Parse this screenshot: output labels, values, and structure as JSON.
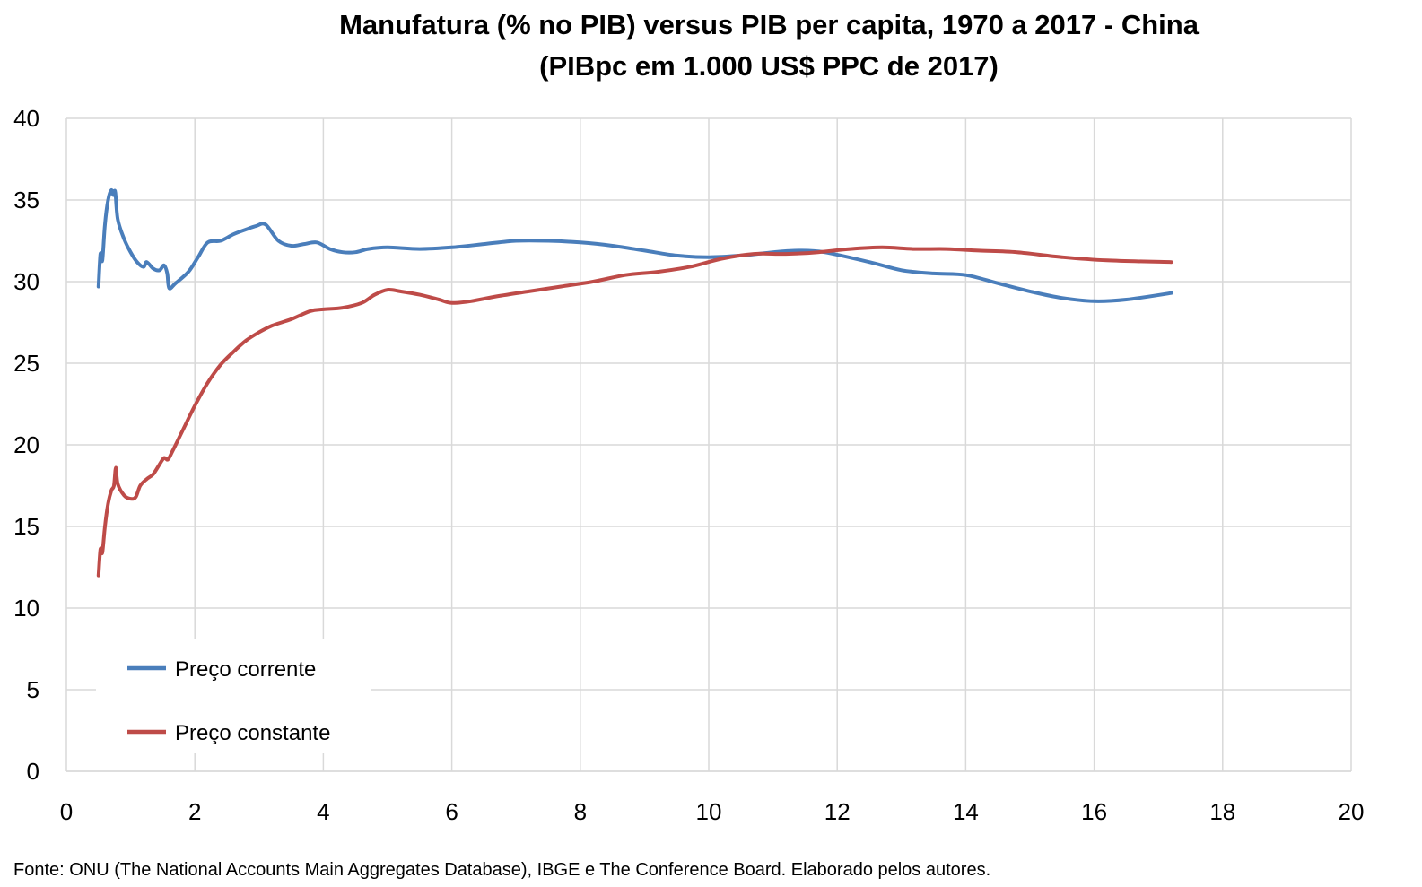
{
  "chart_data": {
    "type": "line",
    "title": "Manufatura (% no PIB) versus PIB per capita, 1970 a 2017 - China",
    "subtitle": "(PIBpc em 1.000 US$ PPC de 2017)",
    "xlabel": "",
    "ylabel": "",
    "xlim": [
      0,
      20
    ],
    "ylim": [
      0,
      40
    ],
    "x_ticks": [
      "0",
      "2",
      "4",
      "6",
      "8",
      "10",
      "12",
      "14",
      "16",
      "18",
      "20"
    ],
    "y_ticks": [
      "0",
      "5",
      "10",
      "15",
      "20",
      "25",
      "30",
      "35",
      "40"
    ],
    "grid": true,
    "legend_position": "bottom-left",
    "source": "Fonte: ONU (The National Accounts Main Aggregates Database), IBGE e The Conference Board. Elaborado pelos autores.",
    "series": [
      {
        "name": "Preço corrente",
        "color": "#4a7ebb",
        "points": [
          [
            0.5,
            29.7
          ],
          [
            0.53,
            31.7
          ],
          [
            0.56,
            31.3
          ],
          [
            0.6,
            33.5
          ],
          [
            0.65,
            35.0
          ],
          [
            0.7,
            35.6
          ],
          [
            0.73,
            35.3
          ],
          [
            0.76,
            35.5
          ],
          [
            0.8,
            33.8
          ],
          [
            0.9,
            32.6
          ],
          [
            1.0,
            31.8
          ],
          [
            1.1,
            31.2
          ],
          [
            1.2,
            30.9
          ],
          [
            1.25,
            31.2
          ],
          [
            1.35,
            30.8
          ],
          [
            1.45,
            30.7
          ],
          [
            1.52,
            31.0
          ],
          [
            1.57,
            30.5
          ],
          [
            1.6,
            29.6
          ],
          [
            1.7,
            29.9
          ],
          [
            1.9,
            30.6
          ],
          [
            2.05,
            31.5
          ],
          [
            2.2,
            32.4
          ],
          [
            2.4,
            32.5
          ],
          [
            2.6,
            32.9
          ],
          [
            2.8,
            33.2
          ],
          [
            2.95,
            33.4
          ],
          [
            3.1,
            33.5
          ],
          [
            3.3,
            32.5
          ],
          [
            3.5,
            32.2
          ],
          [
            3.7,
            32.3
          ],
          [
            3.9,
            32.4
          ],
          [
            4.1,
            32.0
          ],
          [
            4.3,
            31.8
          ],
          [
            4.5,
            31.8
          ],
          [
            4.7,
            32.0
          ],
          [
            5.0,
            32.1
          ],
          [
            5.5,
            32.0
          ],
          [
            6.0,
            32.1
          ],
          [
            6.5,
            32.3
          ],
          [
            7.0,
            32.5
          ],
          [
            7.5,
            32.5
          ],
          [
            8.0,
            32.4
          ],
          [
            8.5,
            32.2
          ],
          [
            9.0,
            31.9
          ],
          [
            9.5,
            31.6
          ],
          [
            10.0,
            31.5
          ],
          [
            10.5,
            31.6
          ],
          [
            11.0,
            31.8
          ],
          [
            11.4,
            31.9
          ],
          [
            11.8,
            31.8
          ],
          [
            12.5,
            31.2
          ],
          [
            13.0,
            30.7
          ],
          [
            13.5,
            30.5
          ],
          [
            14.0,
            30.4
          ],
          [
            14.5,
            29.9
          ],
          [
            15.0,
            29.4
          ],
          [
            15.5,
            29.0
          ],
          [
            16.0,
            28.8
          ],
          [
            16.5,
            28.9
          ],
          [
            17.2,
            29.3
          ]
        ]
      },
      {
        "name": "Preço constante",
        "color": "#be4b48",
        "points": [
          [
            0.5,
            12.0
          ],
          [
            0.53,
            13.6
          ],
          [
            0.56,
            13.4
          ],
          [
            0.6,
            15.0
          ],
          [
            0.65,
            16.4
          ],
          [
            0.7,
            17.2
          ],
          [
            0.74,
            17.5
          ],
          [
            0.77,
            18.6
          ],
          [
            0.8,
            17.6
          ],
          [
            0.9,
            16.9
          ],
          [
            1.0,
            16.7
          ],
          [
            1.08,
            16.8
          ],
          [
            1.15,
            17.5
          ],
          [
            1.25,
            17.9
          ],
          [
            1.35,
            18.2
          ],
          [
            1.45,
            18.8
          ],
          [
            1.52,
            19.2
          ],
          [
            1.58,
            19.1
          ],
          [
            1.65,
            19.6
          ],
          [
            1.8,
            20.8
          ],
          [
            2.0,
            22.4
          ],
          [
            2.2,
            23.8
          ],
          [
            2.4,
            24.9
          ],
          [
            2.6,
            25.7
          ],
          [
            2.8,
            26.4
          ],
          [
            3.0,
            26.9
          ],
          [
            3.2,
            27.3
          ],
          [
            3.5,
            27.7
          ],
          [
            3.8,
            28.2
          ],
          [
            4.0,
            28.3
          ],
          [
            4.3,
            28.4
          ],
          [
            4.6,
            28.7
          ],
          [
            4.8,
            29.2
          ],
          [
            5.0,
            29.5
          ],
          [
            5.2,
            29.4
          ],
          [
            5.5,
            29.2
          ],
          [
            5.8,
            28.9
          ],
          [
            6.0,
            28.7
          ],
          [
            6.3,
            28.8
          ],
          [
            6.7,
            29.1
          ],
          [
            7.2,
            29.4
          ],
          [
            7.7,
            29.7
          ],
          [
            8.2,
            30.0
          ],
          [
            8.7,
            30.4
          ],
          [
            9.2,
            30.6
          ],
          [
            9.7,
            30.9
          ],
          [
            10.2,
            31.4
          ],
          [
            10.7,
            31.7
          ],
          [
            11.2,
            31.7
          ],
          [
            11.7,
            31.8
          ],
          [
            12.2,
            32.0
          ],
          [
            12.7,
            32.1
          ],
          [
            13.2,
            32.0
          ],
          [
            13.7,
            32.0
          ],
          [
            14.2,
            31.9
          ],
          [
            14.8,
            31.8
          ],
          [
            15.5,
            31.5
          ],
          [
            16.2,
            31.3
          ],
          [
            17.2,
            31.2
          ]
        ]
      }
    ]
  }
}
